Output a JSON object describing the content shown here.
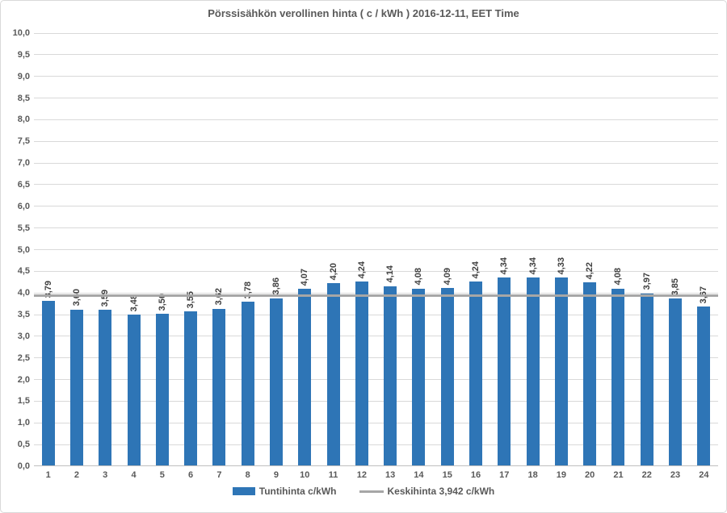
{
  "chart_data": {
    "type": "bar",
    "title": "Pörssisähkön verollinen hinta ( c / kWh ) 2016-12-11, EET Time",
    "categories": [
      "1",
      "2",
      "3",
      "4",
      "5",
      "6",
      "7",
      "8",
      "9",
      "10",
      "11",
      "12",
      "13",
      "14",
      "15",
      "16",
      "17",
      "18",
      "19",
      "20",
      "21",
      "22",
      "23",
      "24"
    ],
    "values": [
      3.79,
      3.6,
      3.59,
      3.48,
      3.5,
      3.55,
      3.62,
      3.78,
      3.86,
      4.07,
      4.2,
      4.24,
      4.14,
      4.08,
      4.09,
      4.24,
      4.34,
      4.34,
      4.33,
      4.22,
      4.08,
      3.97,
      3.85,
      3.67
    ],
    "bar_labels": [
      "3,79",
      "3,60",
      "3,59",
      "3,48",
      "3,50",
      "3,55",
      "3,62",
      "3,78",
      "3,86",
      "4,07",
      "4,20",
      "4,24",
      "4,14",
      "4,08",
      "4,09",
      "4,24",
      "4,34",
      "4,34",
      "4,33",
      "4,22",
      "4,08",
      "3,97",
      "3,85",
      "3,67"
    ],
    "xlabel": "",
    "ylabel": "",
    "ylim": [
      0,
      10
    ],
    "ytick_step": 0.5,
    "ytick_labels": [
      "0,0",
      "0,5",
      "1,0",
      "1,5",
      "2,0",
      "2,5",
      "3,0",
      "3,5",
      "4,0",
      "4,5",
      "5,0",
      "5,5",
      "6,0",
      "6,5",
      "7,0",
      "7,5",
      "8,0",
      "8,5",
      "9,0",
      "9,5",
      "10,0"
    ],
    "grid": true,
    "legend_position": "bottom",
    "average_line": {
      "value": 3.942
    },
    "colors": {
      "bar": "#2e75b6",
      "average_line": "#a6a6a6",
      "gridline": "#d9d9d9",
      "axis_line": "#bfbfbf",
      "tick_text": "#595959",
      "bar_label_text": "#3f3f3f",
      "border": "#d9d9d9",
      "background": "#ffffff"
    }
  },
  "legend": {
    "series_label": "Tuntihinta c/kWh",
    "average_label": "Keskihinta 3,942 c/kWh"
  }
}
